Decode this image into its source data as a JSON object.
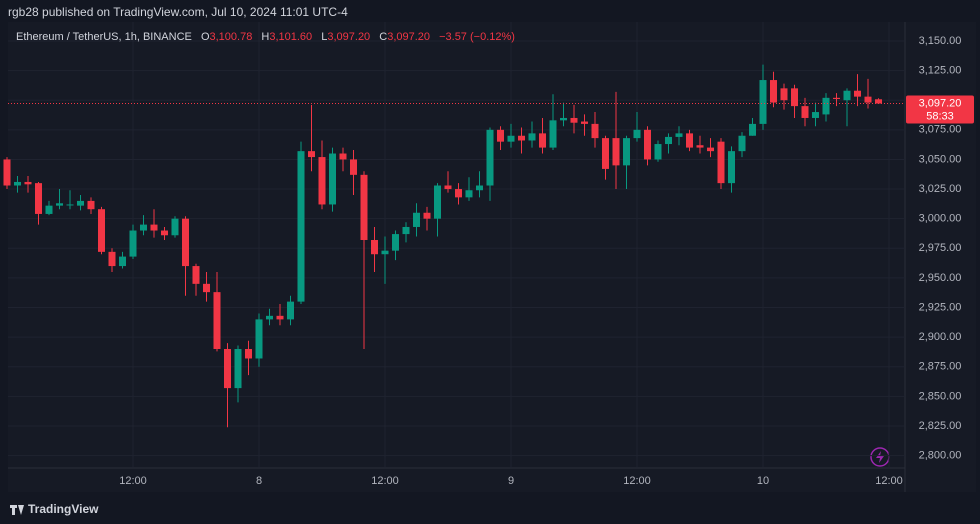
{
  "header": {
    "text": "rgb28 published on TradingView.com, Jul 10, 2024 11:01 UTC-4"
  },
  "footer": {
    "brand": "TradingView"
  },
  "chart_data": {
    "type": "candlestick",
    "legend": {
      "symbol": "Ethereum / TetherUS, 1h, BINANCE",
      "open_label": "O",
      "open": "3,100.78",
      "high_label": "H",
      "high": "3,101.60",
      "low_label": "L",
      "low": "3,097.20",
      "close_label": "C",
      "close": "3,097.20",
      "change": "−3.57 (−0.12%)"
    },
    "categories": [
      null,
      null,
      null,
      null,
      null,
      null,
      null,
      null,
      null,
      null,
      null,
      null,
      "12:00",
      null,
      null,
      null,
      null,
      null,
      null,
      null,
      null,
      null,
      null,
      null,
      "8",
      null,
      null,
      null,
      null,
      null,
      null,
      null,
      null,
      null,
      null,
      null,
      "12:00",
      null,
      null,
      null,
      null,
      null,
      null,
      null,
      null,
      null,
      null,
      null,
      "9",
      null,
      null,
      null,
      null,
      null,
      null,
      null,
      null,
      null,
      null,
      null,
      "12:00",
      null,
      null,
      null,
      null,
      null,
      null,
      null,
      null,
      null,
      null,
      null,
      "10",
      null,
      null,
      null,
      null,
      null,
      null,
      null,
      null,
      null,
      null,
      null,
      "12:00"
    ],
    "open": [
      3050,
      3028,
      3031,
      3030,
      3004,
      3011,
      3012,
      3011,
      3015,
      3008,
      2972,
      2960,
      2968,
      2990,
      2995,
      2990,
      2986,
      3000,
      2960,
      2945,
      2938,
      2890,
      2857,
      2890,
      2882,
      2915,
      2918,
      2915,
      2930,
      3057,
      3052,
      3012,
      3055,
      3050,
      3037,
      2982,
      2970,
      2973,
      2987,
      2993,
      3005,
      3000,
      3028,
      3025,
      3018,
      3024,
      3028,
      3075,
      3065,
      3070,
      3066,
      3072,
      3060,
      3083,
      3085,
      3082,
      3080,
      3068,
      3068,
      3045,
      3068,
      3075,
      3050,
      3063,
      3069,
      3072,
      3062,
      3060,
      3065,
      3030,
      3057,
      3070,
      3080,
      3117,
      3110,
      3110,
      3095,
      3085,
      3088,
      3102,
      3100,
      3108,
      3103,
      3100.78,
      null
    ],
    "high": [
      3052,
      3036,
      3036,
      3031,
      3015,
      3025,
      3024,
      3020,
      3018,
      3010,
      2975,
      2972,
      2995,
      3003,
      3008,
      2993,
      3002,
      3002,
      2962,
      2955,
      2955,
      2895,
      2893,
      2897,
      2920,
      2924,
      2928,
      2935,
      3065,
      3096,
      3066,
      3060,
      3060,
      3058,
      3040,
      2993,
      2985,
      2990,
      2997,
      3013,
      3010,
      3030,
      3040,
      3030,
      3035,
      3040,
      3077,
      3078,
      3080,
      3077,
      3082,
      3085,
      3105,
      3098,
      3096,
      3088,
      3090,
      3070,
      3107,
      3070,
      3090,
      3078,
      3066,
      3072,
      3078,
      3075,
      3070,
      3068,
      3068,
      3061,
      3073,
      3085,
      3130,
      3124,
      3114,
      3113,
      3102,
      3098,
      3106,
      3106,
      3110,
      3122,
      3118,
      3101.6,
      null
    ],
    "low": [
      3025,
      3022,
      3022,
      2995,
      3003,
      3008,
      3008,
      3007,
      3004,
      2970,
      2955,
      2958,
      2966,
      2986,
      2984,
      2982,
      2984,
      2935,
      2935,
      2930,
      2888,
      2824,
      2845,
      2868,
      2875,
      2910,
      2910,
      2910,
      2928,
      3040,
      3008,
      3006,
      3040,
      3020,
      2890,
      2955,
      2945,
      2965,
      2980,
      2985,
      2990,
      2985,
      3022,
      3012,
      3015,
      3018,
      3015,
      3058,
      3060,
      3055,
      3060,
      3055,
      3058,
      3078,
      3072,
      3070,
      3060,
      3033,
      3025,
      3025,
      3065,
      3045,
      3048,
      3055,
      3062,
      3057,
      3055,
      3052,
      3025,
      3022,
      3052,
      3070,
      3075,
      3094,
      3092,
      3085,
      3078,
      3078,
      3082,
      3095,
      3078,
      3095,
      3093,
      3097.2,
      null
    ],
    "close": [
      3028,
      3031,
      3029,
      3004,
      3011,
      3013,
      3012,
      3015,
      3008,
      2972,
      2960,
      2968,
      2990,
      2995,
      2990,
      2986,
      3000,
      2960,
      2945,
      2938,
      2890,
      2857,
      2890,
      2882,
      2915,
      2918,
      2915,
      2930,
      3057,
      3052,
      3012,
      3055,
      3050,
      3037,
      2982,
      2970,
      2973,
      2987,
      2993,
      3005,
      3000,
      3028,
      3025,
      3018,
      3024,
      3028,
      3075,
      3065,
      3070,
      3066,
      3072,
      3060,
      3083,
      3085,
      3081,
      3080,
      3068,
      3042,
      3045,
      3068,
      3075,
      3050,
      3063,
      3069,
      3072,
      3060,
      3060,
      3057,
      3030,
      3057,
      3070,
      3080,
      3117,
      3098,
      3100,
      3095,
      3085,
      3090,
      3102,
      3101,
      3108,
      3103,
      3098,
      3097.2,
      null
    ],
    "up_color": "#089981",
    "down_color": "#f23645",
    "last_price": {
      "value": 3097.2,
      "label": "3,097.20",
      "countdown": "58:33"
    },
    "ylim": [
      2771,
      3166
    ],
    "yticks": [
      {
        "value": 2800,
        "label": "2,800.00"
      },
      {
        "value": 2825,
        "label": "2,825.00"
      },
      {
        "value": 2850,
        "label": "2,850.00"
      },
      {
        "value": 2875,
        "label": "2,875.00"
      },
      {
        "value": 2900,
        "label": "2,900.00"
      },
      {
        "value": 2925,
        "label": "2,925.00"
      },
      {
        "value": 2950,
        "label": "2,950.00"
      },
      {
        "value": 2975,
        "label": "2,975.00"
      },
      {
        "value": 3000,
        "label": "3,000.00"
      },
      {
        "value": 3025,
        "label": "3,025.00"
      },
      {
        "value": 3050,
        "label": "3,050.00"
      },
      {
        "value": 3075,
        "label": "3,075.00"
      },
      {
        "value": 3100,
        "label": "3,100.00"
      },
      {
        "value": 3125,
        "label": "3,125.00"
      },
      {
        "value": 3150,
        "label": "3,150.00"
      }
    ],
    "grid": true
  }
}
